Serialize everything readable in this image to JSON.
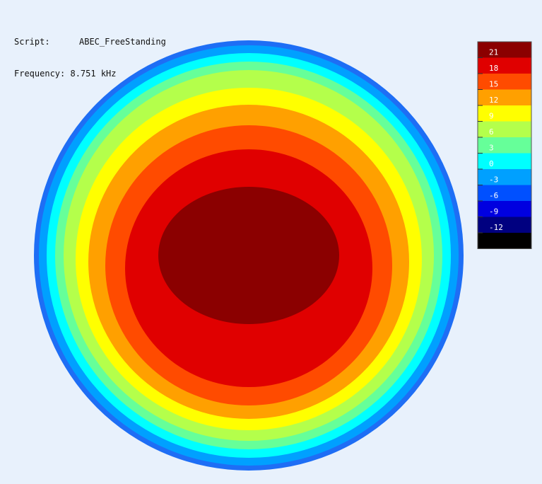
{
  "header": {
    "script_label": "Script:",
    "script_value": "ABEC_FreeStanding",
    "frequency_label": "Frequency:",
    "frequency_value": "8.751 kHz"
  },
  "chart_data": {
    "type": "heatmap",
    "title": "",
    "xlabel": "",
    "ylabel": "",
    "colorbar": {
      "tick_labels": [
        "21",
        "18",
        "15",
        "12",
        "9",
        "6",
        "3",
        "0",
        "-3",
        "-6",
        "-9",
        "-12"
      ],
      "levels": [
        {
          "value": 22.5,
          "color": "#8b0000"
        },
        {
          "value": 19.5,
          "color": "#e00000"
        },
        {
          "value": 16.5,
          "color": "#ff4b00"
        },
        {
          "value": 13.5,
          "color": "#ffa000"
        },
        {
          "value": 10.5,
          "color": "#ffff00"
        },
        {
          "value": 7.5,
          "color": "#b4ff4b"
        },
        {
          "value": 4.5,
          "color": "#66ff99"
        },
        {
          "value": 1.5,
          "color": "#00ffff"
        },
        {
          "value": -1.5,
          "color": "#00a0ff"
        },
        {
          "value": -4.5,
          "color": "#0050ff"
        },
        {
          "value": -7.5,
          "color": "#0000e0"
        },
        {
          "value": -10.5,
          "color": "#000080"
        },
        {
          "value": -13.5,
          "color": "#000000"
        }
      ]
    },
    "contour_bands_outer_to_inner": [
      {
        "level": -6,
        "color": "#1e6ef5"
      },
      {
        "level": -3,
        "color": "#00a0ff"
      },
      {
        "level": 0,
        "color": "#00ffff"
      },
      {
        "level": 3,
        "color": "#66ff99"
      },
      {
        "level": 6,
        "color": "#b4ff4b"
      },
      {
        "level": 9,
        "color": "#ffff00"
      },
      {
        "level": 12,
        "color": "#ffa000"
      },
      {
        "level": 15,
        "color": "#ff4b00"
      },
      {
        "level": 18,
        "color": "#e00000"
      },
      {
        "level": 21,
        "color": "#8b0000"
      }
    ]
  }
}
